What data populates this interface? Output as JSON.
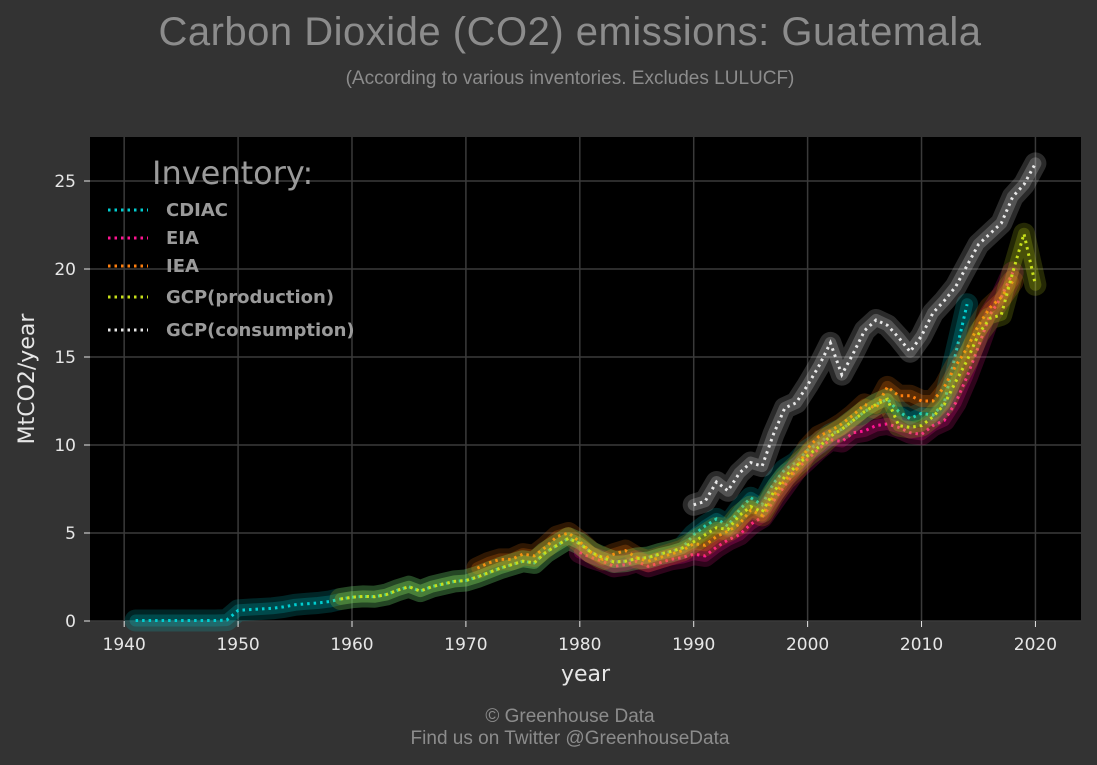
{
  "header": {
    "title": "Carbon Dioxide (CO2) emissions: Guatemala",
    "subtitle": "(According to various inventories. Excludes LULUCF)"
  },
  "footer": {
    "copyright": "© Greenhouse Data",
    "twitter": "Find us on Twitter @GreenhouseData"
  },
  "colors": {
    "background": "#333333",
    "plot_background": "#000000",
    "grid": "#3a3a3a",
    "text": "#e6e6e6",
    "muted_text": "#8c8c8c"
  },
  "chart_data": {
    "type": "line",
    "title": "Carbon Dioxide (CO2) emissions: Guatemala",
    "subtitle": "(According to various inventories. Excludes LULUCF)",
    "xlabel": "year",
    "ylabel": "MtCO2/year",
    "xlim": [
      1937,
      2024
    ],
    "ylim": [
      0,
      27.5
    ],
    "xticks": [
      1940,
      1950,
      1960,
      1970,
      1980,
      1990,
      2000,
      2010,
      2020
    ],
    "yticks": [
      0,
      5,
      10,
      15,
      20,
      25
    ],
    "grid": true,
    "legend_title": "Inventory:",
    "legend_position": "top-left",
    "line_style": "dotted with glow",
    "series": [
      {
        "name": "CDIAC",
        "color": "#00ced1",
        "x": [
          1941,
          1942,
          1943,
          1944,
          1945,
          1946,
          1947,
          1948,
          1949,
          1950,
          1951,
          1952,
          1953,
          1954,
          1955,
          1956,
          1957,
          1958,
          1959,
          1960,
          1961,
          1962,
          1963,
          1964,
          1965,
          1966,
          1967,
          1968,
          1969,
          1970,
          1971,
          1972,
          1973,
          1974,
          1975,
          1976,
          1977,
          1978,
          1979,
          1980,
          1981,
          1982,
          1983,
          1984,
          1985,
          1986,
          1987,
          1988,
          1989,
          1990,
          1991,
          1992,
          1993,
          1994,
          1995,
          1996,
          1997,
          1998,
          1999,
          2000,
          2001,
          2002,
          2003,
          2004,
          2005,
          2006,
          2007,
          2008,
          2009,
          2010,
          2011,
          2012,
          2013,
          2014
        ],
        "y": [
          0.03,
          0.03,
          0.03,
          0.03,
          0.03,
          0.03,
          0.03,
          0.03,
          0.05,
          0.6,
          0.65,
          0.68,
          0.72,
          0.8,
          0.92,
          0.98,
          1.02,
          1.1,
          1.25,
          1.35,
          1.4,
          1.38,
          1.5,
          1.75,
          1.95,
          1.7,
          1.95,
          2.1,
          2.25,
          2.3,
          2.5,
          2.75,
          3.0,
          3.2,
          3.4,
          3.3,
          3.9,
          4.3,
          4.7,
          4.4,
          3.9,
          3.6,
          3.35,
          3.4,
          3.55,
          3.6,
          3.8,
          3.95,
          4.15,
          4.9,
          5.4,
          5.8,
          5.4,
          6.3,
          7.0,
          6.6,
          7.8,
          8.6,
          9.0,
          9.7,
          10.1,
          10.6,
          10.9,
          11.4,
          11.9,
          12.3,
          12.6,
          11.9,
          11.5,
          11.8,
          11.7,
          12.4,
          15.2,
          18.0
        ]
      },
      {
        "name": "EIA",
        "color": "#ff1493",
        "x": [
          1980,
          1981,
          1982,
          1983,
          1984,
          1985,
          1986,
          1987,
          1988,
          1989,
          1990,
          1991,
          1992,
          1993,
          1994,
          1995,
          1996,
          1997,
          1998,
          1999,
          2000,
          2001,
          2002,
          2003,
          2004,
          2005,
          2006,
          2007,
          2008,
          2009,
          2010,
          2011,
          2012,
          2013,
          2014,
          2015,
          2016,
          2017,
          2018
        ],
        "y": [
          3.9,
          3.6,
          3.4,
          3.1,
          3.2,
          3.4,
          3.1,
          3.3,
          3.5,
          3.6,
          3.8,
          3.7,
          4.2,
          4.6,
          4.9,
          5.5,
          5.9,
          6.8,
          7.7,
          8.6,
          9.2,
          9.8,
          10.3,
          10.2,
          10.7,
          10.8,
          11.1,
          11.2,
          11.0,
          10.7,
          10.6,
          11.1,
          11.4,
          12.4,
          13.9,
          15.6,
          17.4,
          18.4,
          19.8
        ]
      },
      {
        "name": "IEA",
        "color": "#ff7f0e",
        "x": [
          1971,
          1972,
          1973,
          1974,
          1975,
          1976,
          1977,
          1978,
          1979,
          1980,
          1981,
          1982,
          1983,
          1984,
          1985,
          1986,
          1987,
          1988,
          1989,
          1990,
          1991,
          1992,
          1993,
          1994,
          1995,
          1996,
          1997,
          1998,
          1999,
          2000,
          2001,
          2002,
          2003,
          2004,
          2005,
          2006,
          2007,
          2008,
          2009,
          2010,
          2011,
          2012,
          2013,
          2014,
          2015,
          2016,
          2017,
          2018
        ],
        "y": [
          3.0,
          3.3,
          3.5,
          3.5,
          3.8,
          3.7,
          4.2,
          4.8,
          5.0,
          4.5,
          3.9,
          3.5,
          3.8,
          4.0,
          3.6,
          3.4,
          3.6,
          3.8,
          4.0,
          4.4,
          4.3,
          4.8,
          5.1,
          5.5,
          6.3,
          6.0,
          7.1,
          8.0,
          8.6,
          9.8,
          10.5,
          10.8,
          11.2,
          11.7,
          12.3,
          12.1,
          13.3,
          12.8,
          12.8,
          12.5,
          12.5,
          13.3,
          14.5,
          15.5,
          16.8,
          17.8,
          18.4,
          19.3
        ]
      },
      {
        "name": "GCP(production)",
        "color": "#c8e01a",
        "x": [
          1959,
          1960,
          1961,
          1962,
          1963,
          1964,
          1965,
          1966,
          1967,
          1968,
          1969,
          1970,
          1971,
          1972,
          1973,
          1974,
          1975,
          1976,
          1977,
          1978,
          1979,
          1980,
          1981,
          1982,
          1983,
          1984,
          1985,
          1986,
          1987,
          1988,
          1989,
          1990,
          1991,
          1992,
          1993,
          1994,
          1995,
          1996,
          1997,
          1998,
          1999,
          2000,
          2001,
          2002,
          2003,
          2004,
          2005,
          2006,
          2007,
          2008,
          2009,
          2010,
          2011,
          2012,
          2013,
          2014,
          2015,
          2016,
          2017,
          2018,
          2019,
          2020
        ],
        "y": [
          1.25,
          1.35,
          1.4,
          1.38,
          1.5,
          1.75,
          1.95,
          1.7,
          1.95,
          2.1,
          2.25,
          2.3,
          2.5,
          2.75,
          3.0,
          3.2,
          3.4,
          3.3,
          3.9,
          4.3,
          4.7,
          4.4,
          3.9,
          3.6,
          3.35,
          3.4,
          3.55,
          3.6,
          3.8,
          3.95,
          4.15,
          4.5,
          4.9,
          5.3,
          5.2,
          6.0,
          6.5,
          6.2,
          7.3,
          8.2,
          8.8,
          9.4,
          9.9,
          10.5,
          10.9,
          11.4,
          11.9,
          12.3,
          12.6,
          11.1,
          11.0,
          11.1,
          11.6,
          12.3,
          13.6,
          14.8,
          16.3,
          17.2,
          17.4,
          19.8,
          22.0,
          19.1
        ]
      },
      {
        "name": "GCP(consumption)",
        "color": "#e8e8e8",
        "x": [
          1990,
          1991,
          1992,
          1993,
          1994,
          1995,
          1996,
          1997,
          1998,
          1999,
          2000,
          2001,
          2002,
          2003,
          2004,
          2005,
          2006,
          2007,
          2008,
          2009,
          2010,
          2011,
          2012,
          2013,
          2014,
          2015,
          2016,
          2017,
          2018,
          2019,
          2020
        ],
        "y": [
          6.6,
          6.8,
          7.9,
          7.4,
          8.4,
          9.0,
          8.8,
          10.6,
          12.1,
          12.4,
          13.4,
          14.5,
          15.8,
          14.0,
          15.2,
          16.5,
          17.1,
          16.8,
          16.1,
          15.3,
          16.2,
          17.5,
          18.2,
          19.0,
          20.2,
          21.4,
          22.0,
          22.6,
          24.1,
          24.8,
          26.0
        ]
      }
    ]
  }
}
